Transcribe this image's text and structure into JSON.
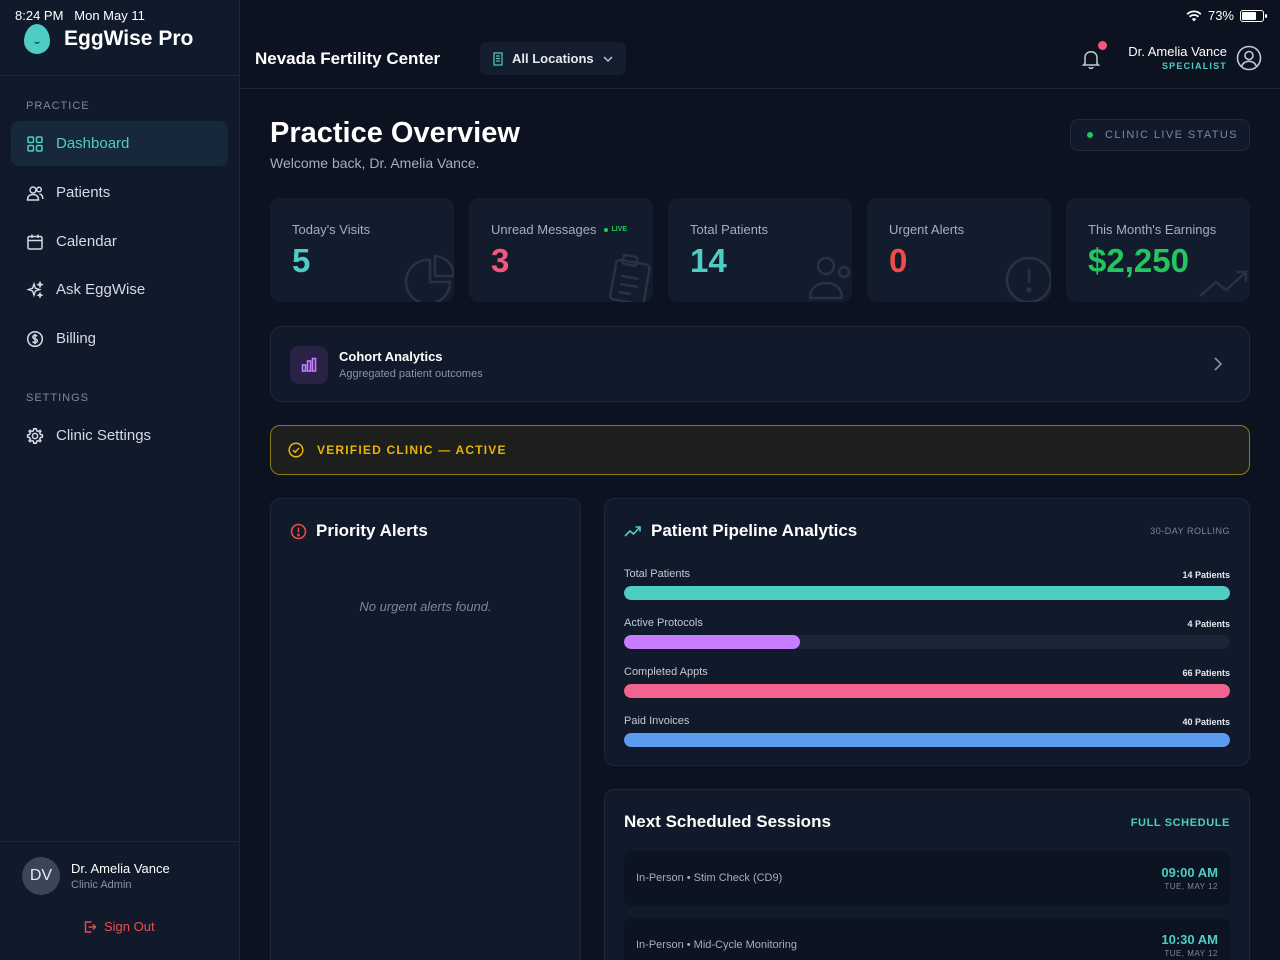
{
  "status_bar": {
    "time": "8:24 PM",
    "date": "Mon May 11",
    "battery": "73%"
  },
  "brand": {
    "name": "EggWise Pro"
  },
  "sidebar": {
    "sections": [
      {
        "label": "PRACTICE"
      },
      {
        "label": "SETTINGS"
      }
    ],
    "items": [
      {
        "label": "Dashboard",
        "icon": "grid-icon",
        "active": true
      },
      {
        "label": "Patients",
        "icon": "users-icon"
      },
      {
        "label": "Calendar",
        "icon": "calendar-icon"
      },
      {
        "label": "Ask EggWise",
        "icon": "sparkles-icon"
      },
      {
        "label": "Billing",
        "icon": "dollar-circle-icon"
      },
      {
        "label": "Clinic Settings",
        "icon": "gear-icon"
      }
    ],
    "user": {
      "initials": "DV",
      "name": "Dr. Amelia Vance",
      "role": "Clinic Admin"
    },
    "sign_out": "Sign Out"
  },
  "header": {
    "clinic_name": "Nevada Fertility Center",
    "location_select": "All Locations",
    "doctor_name": "Dr. Amelia Vance",
    "doctor_title": "SPECIALIST"
  },
  "main": {
    "title": "Practice Overview",
    "subtitle": "Welcome back, Dr. Amelia Vance.",
    "live_status": "CLINIC LIVE STATUS",
    "stats": [
      {
        "label": "Today's Visits",
        "value": "5",
        "color": "#4ecdc4",
        "icon": "pie-chart-icon"
      },
      {
        "label": "Unread Messages",
        "value": "3",
        "color": "#f2577f",
        "icon": "clipboard-icon",
        "badge": "LIVE"
      },
      {
        "label": "Total Patients",
        "value": "14",
        "color": "#4ecdc4",
        "icon": "users-icon"
      },
      {
        "label": "Urgent Alerts",
        "value": "0",
        "color": "#ef4c4c",
        "icon": "alert-circle-icon"
      },
      {
        "label": "This Month's Earnings",
        "value": "$2,250",
        "color": "#22c55e",
        "icon": "trending-up-icon"
      }
    ],
    "cohort": {
      "title": "Cohort Analytics",
      "subtitle": "Aggregated patient outcomes"
    },
    "verified": "VERIFIED CLINIC — ACTIVE",
    "priority_alerts": {
      "title": "Priority Alerts",
      "empty": "No urgent alerts found."
    },
    "pipeline": {
      "title": "Patient Pipeline Analytics",
      "period": "30-DAY ROLLING",
      "rows": [
        {
          "label": "Total Patients",
          "count": "14 Patients",
          "fill": 1.0,
          "color": "#4ecdc4"
        },
        {
          "label": "Active Protocols",
          "count": "4 Patients",
          "fill": 0.29,
          "color": "#c77dff"
        },
        {
          "label": "Completed Appts",
          "count": "66 Patients",
          "fill": 1.0,
          "color": "#f2648f"
        },
        {
          "label": "Paid Invoices",
          "count": "40 Patients",
          "fill": 1.0,
          "color": "#5b9cf2"
        }
      ]
    },
    "sessions": {
      "title": "Next Scheduled Sessions",
      "link": "FULL SCHEDULE",
      "items": [
        {
          "desc": "In-Person • Stim Check (CD9)",
          "time": "09:00 AM",
          "date": "TUE, MAY 12"
        },
        {
          "desc": "In-Person • Mid-Cycle Monitoring",
          "time": "10:30 AM",
          "date": "TUE, MAY 12"
        }
      ]
    }
  }
}
